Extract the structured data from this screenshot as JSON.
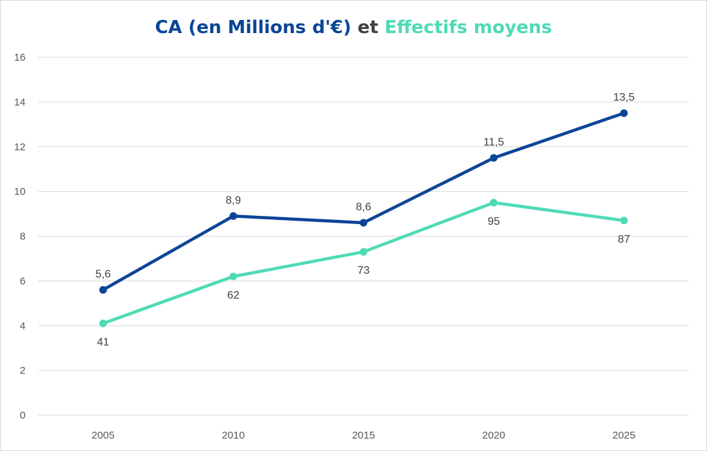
{
  "chart_data": {
    "type": "line",
    "title_parts": [
      {
        "text": "CA (en Millions d'€)",
        "color": "#0b4596"
      },
      {
        "text": " et ",
        "color": "#404040"
      },
      {
        "text": "Effectifs moyens",
        "color": "#4fdab6"
      }
    ],
    "categories": [
      "2005",
      "2010",
      "2015",
      "2020",
      "2025"
    ],
    "ylim": [
      0,
      16
    ],
    "yticks": [
      "0",
      "2",
      "4",
      "6",
      "8",
      "10",
      "12",
      "14",
      "16"
    ],
    "grid": true,
    "series": [
      {
        "name": "CA (en Millions d'€)",
        "color": "#0b4596",
        "values": [
          5.6,
          8.9,
          8.6,
          11.5,
          13.5
        ],
        "labels": [
          "5,6",
          "8,9",
          "8,6",
          "11,5",
          "13,5"
        ],
        "label_position": "above"
      },
      {
        "name": "Effectifs moyens",
        "color": "#4fdab6",
        "values": [
          4.1,
          6.2,
          7.3,
          9.5,
          8.7
        ],
        "labels": [
          "41",
          "62",
          "73",
          "95",
          "87"
        ],
        "label_position": "below"
      }
    ]
  }
}
